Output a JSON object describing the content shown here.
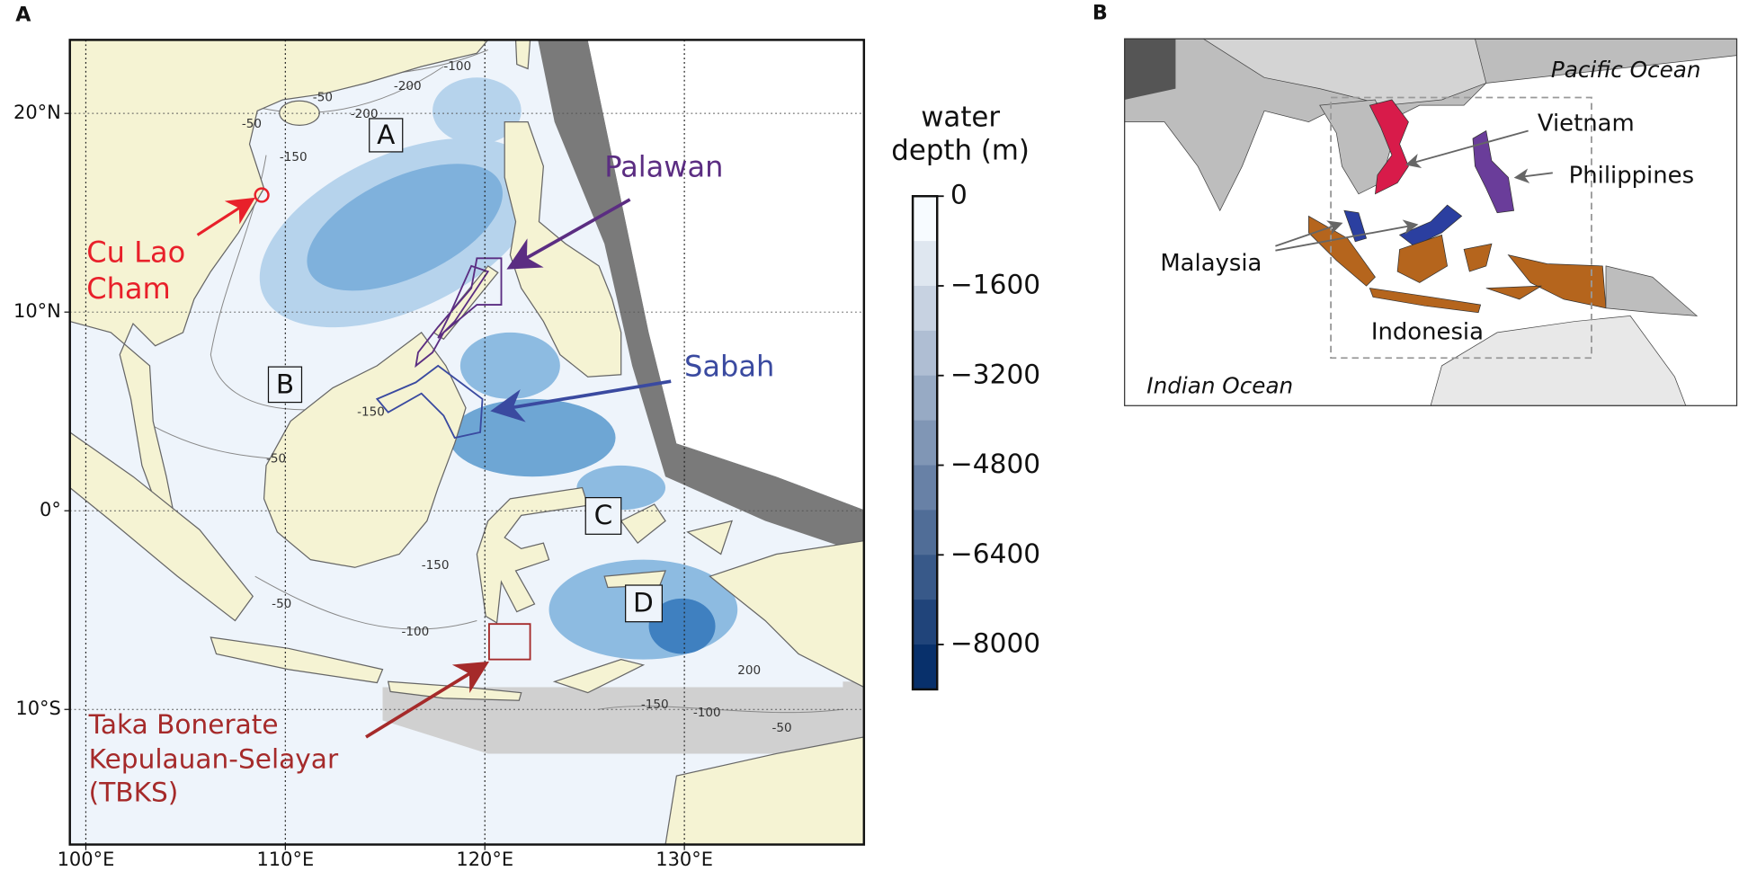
{
  "panel_a": {
    "label": "A",
    "xlim": [
      99.2,
      139.0
    ],
    "ylim": [
      -16.8,
      23.7
    ],
    "grid": true,
    "lon_ticks": [
      {
        "value": 100,
        "label": "100°E"
      },
      {
        "value": 110,
        "label": "110°E"
      },
      {
        "value": 120,
        "label": "120°E"
      },
      {
        "value": 130,
        "label": "130°E"
      }
    ],
    "lat_ticks": [
      {
        "value": 20,
        "label": "20°N"
      },
      {
        "value": 10,
        "label": "10°N"
      },
      {
        "value": 0,
        "label": "0°"
      },
      {
        "value": -10,
        "label": "10°S"
      }
    ],
    "box_labels": [
      "A",
      "B",
      "C",
      "D"
    ],
    "contour_labels": [
      -100,
      -200,
      -50,
      -200,
      -150,
      -50,
      -150,
      -50,
      -150,
      -50,
      -100,
      -150,
      -100,
      -50,
      200
    ],
    "annotations": {
      "cu_lao_cham": [
        "Cu Lao",
        "Cham"
      ],
      "palawan": "Palawan",
      "sabah": "Sabah",
      "tbks": [
        "Taka Bonerate",
        "Kepulauan-Selayar",
        "(TBKS)"
      ]
    },
    "colorbar": {
      "title": [
        "water",
        "depth (m)"
      ],
      "lim": [
        -8800,
        0
      ],
      "colors": [
        "#f7fbff",
        "#08306b"
      ],
      "ticks": [
        0,
        {
          "value": -1600,
          "label": "−1600"
        },
        {
          "value": -3200,
          "label": "−3200"
        },
        {
          "value": -4800,
          "label": "−4800"
        },
        {
          "value": -6400,
          "label": "−6400"
        },
        {
          "value": -8000,
          "label": "−8000"
        }
      ]
    }
  },
  "panel_b": {
    "label": "B",
    "labels": {
      "pacific": "Pacific Ocean",
      "vietnam": "Vietnam",
      "philippines": "Philippines",
      "malaysia": "Malaysia",
      "indonesia": "Indonesia",
      "indian": "Indian Ocean"
    }
  }
}
